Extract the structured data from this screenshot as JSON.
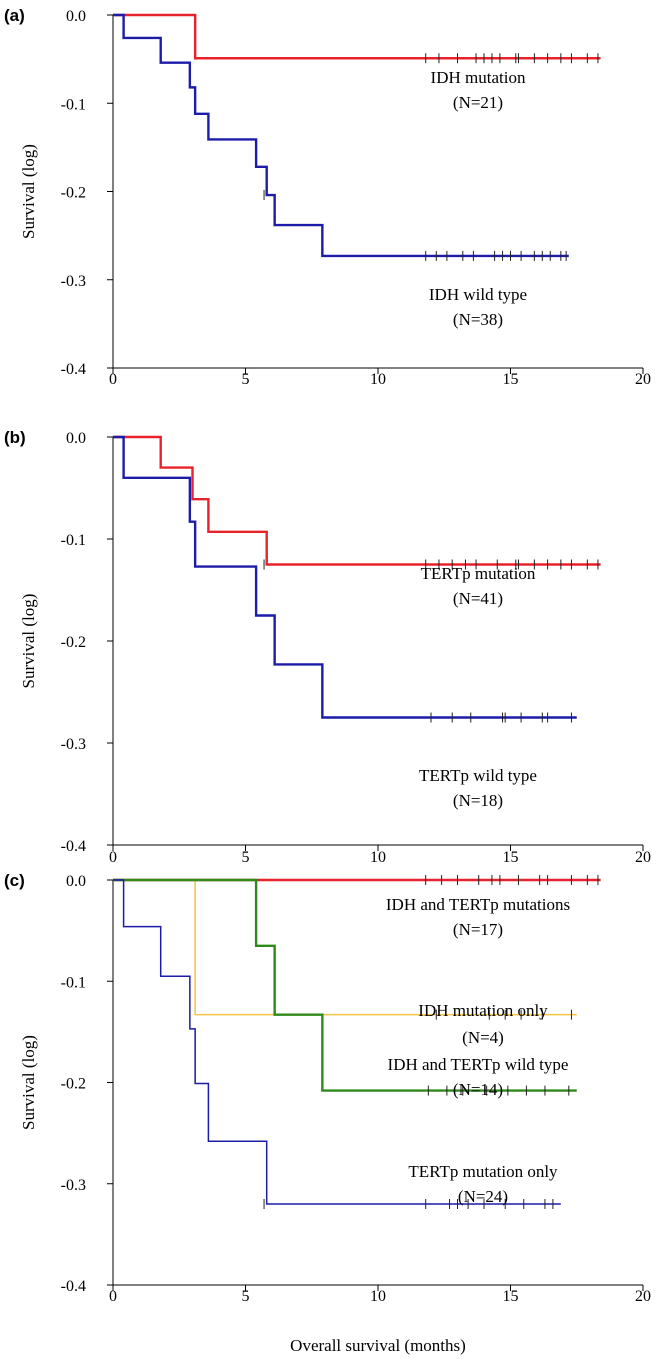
{
  "chart_data": [
    {
      "type": "line",
      "panel_label": "(a)",
      "ylabel": "Survival (log)",
      "xlabel": "",
      "xlim": [
        0,
        20
      ],
      "ylim": [
        -0.4,
        0.0
      ],
      "x_ticks": [
        "0",
        "5",
        "10",
        "15",
        "20"
      ],
      "y_ticks": [
        "0.0",
        "-0.1",
        "-0.2",
        "-0.3",
        "-0.4"
      ],
      "series": [
        {
          "name": "IDH mutation",
          "n_label": "(N=21)",
          "color": "#e8222a",
          "steps": [
            [
              0,
              0.0
            ],
            [
              3.1,
              -0.049
            ],
            [
              18.4,
              -0.049
            ]
          ],
          "censors": [
            [
              11.8,
              -0.049
            ],
            [
              12.3,
              -0.049
            ],
            [
              13.0,
              -0.049
            ],
            [
              13.7,
              -0.049
            ],
            [
              14.0,
              -0.049
            ],
            [
              14.3,
              -0.049
            ],
            [
              14.6,
              -0.049
            ],
            [
              15.2,
              -0.049
            ],
            [
              15.3,
              -0.049
            ],
            [
              15.9,
              -0.049
            ],
            [
              16.4,
              -0.049
            ],
            [
              16.9,
              -0.049
            ],
            [
              17.3,
              -0.049
            ],
            [
              17.9,
              -0.049
            ],
            [
              18.3,
              -0.049
            ]
          ]
        },
        {
          "name": "IDH wild type",
          "n_label": "(N=38)",
          "color": "#1c1ca8",
          "steps": [
            [
              0,
              0.0
            ],
            [
              0.4,
              -0.026
            ],
            [
              1.8,
              -0.054
            ],
            [
              2.9,
              -0.082
            ],
            [
              3.1,
              -0.112
            ],
            [
              3.6,
              -0.141
            ],
            [
              5.4,
              -0.172
            ],
            [
              5.8,
              -0.204
            ],
            [
              6.1,
              -0.238
            ],
            [
              7.9,
              -0.273
            ],
            [
              17.2,
              -0.273
            ]
          ],
          "censors": [
            [
              5.7,
              -0.204
            ],
            [
              11.8,
              -0.273
            ],
            [
              12.2,
              -0.273
            ],
            [
              12.6,
              -0.273
            ],
            [
              13.2,
              -0.273
            ],
            [
              13.6,
              -0.273
            ],
            [
              14.4,
              -0.273
            ],
            [
              14.7,
              -0.273
            ],
            [
              15.0,
              -0.273
            ],
            [
              15.4,
              -0.273
            ],
            [
              15.9,
              -0.273
            ],
            [
              16.2,
              -0.273
            ],
            [
              16.5,
              -0.273
            ],
            [
              16.9,
              -0.273
            ],
            [
              17.1,
              -0.273
            ]
          ]
        }
      ]
    },
    {
      "type": "line",
      "panel_label": "(b)",
      "ylabel": "Survival (log)",
      "xlabel": "",
      "xlim": [
        0,
        20
      ],
      "ylim": [
        -0.4,
        0.0
      ],
      "x_ticks": [
        "0",
        "5",
        "10",
        "15",
        "20"
      ],
      "y_ticks": [
        "0.0",
        "-0.1",
        "-0.2",
        "-0.3",
        "-0.4"
      ],
      "series": [
        {
          "name": "TERTp mutation",
          "n_label": "(N=41)",
          "color": "#e8222a",
          "steps": [
            [
              0,
              0.0
            ],
            [
              1.8,
              -0.03
            ],
            [
              3.0,
              -0.061
            ],
            [
              3.6,
              -0.093
            ],
            [
              5.8,
              -0.125
            ],
            [
              18.4,
              -0.125
            ]
          ],
          "censors": [
            [
              5.7,
              -0.125
            ],
            [
              11.8,
              -0.125
            ],
            [
              12.3,
              -0.125
            ],
            [
              12.8,
              -0.125
            ],
            [
              13.3,
              -0.125
            ],
            [
              13.7,
              -0.125
            ],
            [
              14.5,
              -0.125
            ],
            [
              15.2,
              -0.125
            ],
            [
              15.3,
              -0.125
            ],
            [
              15.9,
              -0.125
            ],
            [
              16.4,
              -0.125
            ],
            [
              16.9,
              -0.125
            ],
            [
              17.3,
              -0.125
            ],
            [
              17.9,
              -0.125
            ],
            [
              18.3,
              -0.125
            ]
          ]
        },
        {
          "name": "TERTp wild type",
          "n_label": "(N=18)",
          "color": "#1c1ca8",
          "steps": [
            [
              0,
              0.0
            ],
            [
              0.4,
              -0.04
            ],
            [
              2.9,
              -0.083
            ],
            [
              3.1,
              -0.127
            ],
            [
              5.4,
              -0.175
            ],
            [
              6.1,
              -0.223
            ],
            [
              7.9,
              -0.275
            ],
            [
              17.5,
              -0.275
            ]
          ],
          "censors": [
            [
              12.0,
              -0.275
            ],
            [
              12.8,
              -0.275
            ],
            [
              13.5,
              -0.275
            ],
            [
              14.7,
              -0.275
            ],
            [
              14.8,
              -0.275
            ],
            [
              15.4,
              -0.275
            ],
            [
              16.2,
              -0.275
            ],
            [
              16.4,
              -0.275
            ],
            [
              17.3,
              -0.275
            ]
          ]
        }
      ]
    },
    {
      "type": "line",
      "panel_label": "(c)",
      "ylabel": "Survival (log)",
      "xlabel": "Overall survival (months)",
      "xlim": [
        0,
        20
      ],
      "ylim": [
        -0.4,
        0.0
      ],
      "x_ticks": [
        "0",
        "5",
        "10",
        "15",
        "20"
      ],
      "y_ticks": [
        "0.0",
        "-0.1",
        "-0.2",
        "-0.3",
        "-0.4"
      ],
      "series": [
        {
          "name": "IDH and TERTp mutations",
          "n_label": "(N=17)",
          "color": "#e8222a",
          "steps": [
            [
              0,
              0.0
            ],
            [
              18.4,
              0.0
            ]
          ],
          "censors": [
            [
              11.8,
              0.0
            ],
            [
              12.4,
              0.0
            ],
            [
              13.0,
              0.0
            ],
            [
              13.8,
              0.0
            ],
            [
              14.3,
              0.0
            ],
            [
              14.6,
              0.0
            ],
            [
              15.3,
              0.0
            ],
            [
              16.1,
              0.0
            ],
            [
              16.4,
              0.0
            ],
            [
              17.3,
              0.0
            ],
            [
              17.9,
              0.0
            ],
            [
              18.3,
              0.0
            ]
          ]
        },
        {
          "name": "IDH mutation only",
          "n_label": "(N=4)",
          "color": "#f4c542",
          "steps": [
            [
              0,
              0.0
            ],
            [
              3.1,
              -0.133
            ],
            [
              17.5,
              -0.133
            ]
          ],
          "censors": [
            [
              12.2,
              -0.133
            ],
            [
              14.2,
              -0.133
            ],
            [
              14.8,
              -0.133
            ],
            [
              15.4,
              -0.133
            ],
            [
              16.2,
              -0.133
            ],
            [
              17.3,
              -0.133
            ]
          ]
        },
        {
          "name": "IDH and TERTp wild type",
          "n_label": "(N=14)",
          "color": "#2e8a1a",
          "steps": [
            [
              0,
              0.0
            ],
            [
              5.4,
              -0.065
            ],
            [
              6.1,
              -0.133
            ],
            [
              7.9,
              -0.208
            ],
            [
              17.5,
              -0.208
            ]
          ],
          "censors": [
            [
              11.9,
              -0.208
            ],
            [
              12.6,
              -0.208
            ],
            [
              13.2,
              -0.208
            ],
            [
              14.1,
              -0.208
            ],
            [
              14.9,
              -0.208
            ],
            [
              15.6,
              -0.208
            ],
            [
              16.3,
              -0.208
            ],
            [
              17.2,
              -0.208
            ]
          ]
        },
        {
          "name": "TERTp mutation only",
          "n_label": "(N=24)",
          "color": "#1c1ca8",
          "steps": [
            [
              0,
              0.0
            ],
            [
              0.4,
              -0.046
            ],
            [
              1.8,
              -0.095
            ],
            [
              2.9,
              -0.147
            ],
            [
              3.1,
              -0.201
            ],
            [
              3.6,
              -0.258
            ],
            [
              5.8,
              -0.32
            ],
            [
              16.9,
              -0.32
            ]
          ],
          "censors": [
            [
              5.7,
              -0.32
            ],
            [
              11.8,
              -0.32
            ],
            [
              12.7,
              -0.32
            ],
            [
              13.0,
              -0.32
            ],
            [
              13.4,
              -0.32
            ],
            [
              14.0,
              -0.32
            ],
            [
              14.8,
              -0.32
            ],
            [
              15.5,
              -0.32
            ],
            [
              16.3,
              -0.32
            ],
            [
              16.6,
              -0.32
            ]
          ]
        }
      ]
    }
  ]
}
